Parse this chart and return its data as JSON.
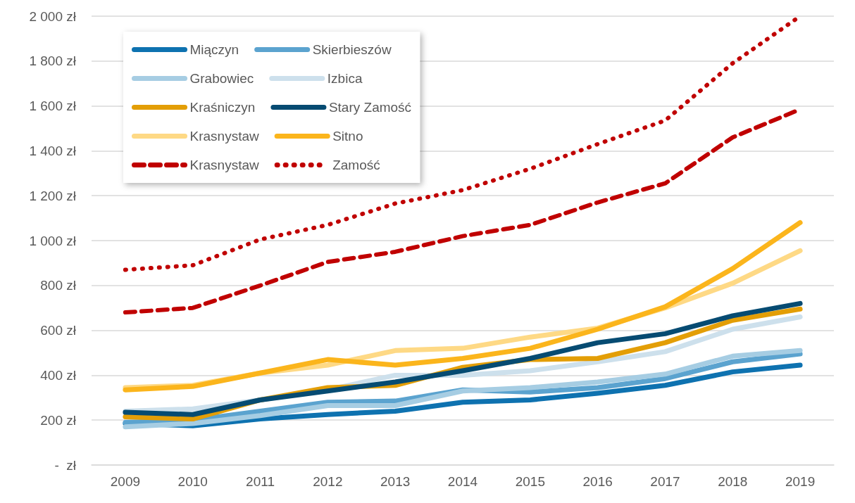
{
  "chart_data": {
    "type": "line",
    "categories": [
      "2009",
      "2010",
      "2011",
      "2012",
      "2013",
      "2014",
      "2015",
      "2016",
      "2017",
      "2018",
      "2019"
    ],
    "ylim": [
      0,
      2000
    ],
    "yticks": [
      {
        "value": 0,
        "label": "-  zł"
      },
      {
        "value": 200,
        "label": "200 zł"
      },
      {
        "value": 400,
        "label": "400 zł"
      },
      {
        "value": 600,
        "label": "600 zł"
      },
      {
        "value": 800,
        "label": "800 zł"
      },
      {
        "value": 1000,
        "label": "1 000 zł"
      },
      {
        "value": 1200,
        "label": "1 200 zł"
      },
      {
        "value": 1400,
        "label": "1 400 zł"
      },
      {
        "value": 1600,
        "label": "1 600 zł"
      },
      {
        "value": 1800,
        "label": "1 800 zł"
      },
      {
        "value": 2000,
        "label": "2 000 zł"
      }
    ],
    "grid": "y",
    "legend": "top left",
    "marker": "none",
    "line_style": "solid",
    "series": [
      {
        "name": "Miączyn",
        "color": "#0e72b0",
        "values": [
          185,
          175,
          205,
          225,
          240,
          280,
          290,
          320,
          355,
          415,
          445
        ]
      },
      {
        "name": "Skierbieszów",
        "color": "#5ba3cf",
        "values": [
          190,
          200,
          240,
          280,
          285,
          335,
          325,
          345,
          385,
          460,
          495
        ]
      },
      {
        "name": "Grabowiec",
        "color": "#a6cde3",
        "values": [
          170,
          185,
          220,
          265,
          265,
          330,
          345,
          370,
          405,
          485,
          510
        ]
      },
      {
        "name": "Izbica",
        "color": "#cde0ec",
        "values": [
          240,
          250,
          290,
          335,
          400,
          400,
          420,
          460,
          505,
          605,
          660
        ]
      },
      {
        "name": "Kraśniczyn",
        "color": "#e39e06",
        "values": [
          215,
          205,
          290,
          345,
          355,
          435,
          470,
          475,
          545,
          645,
          695
        ]
      },
      {
        "name": "Stary Zamość",
        "color": "#064b72",
        "values": [
          235,
          225,
          290,
          330,
          370,
          420,
          475,
          545,
          585,
          665,
          720
        ]
      },
      {
        "name": "Krasnystaw",
        "color": "#fed985",
        "values": [
          345,
          355,
          410,
          445,
          510,
          520,
          570,
          610,
          700,
          810,
          955
        ]
      },
      {
        "name": "Sitno",
        "color": "#fbb51c",
        "values": [
          335,
          350,
          410,
          470,
          445,
          475,
          520,
          605,
          705,
          875,
          1080
        ]
      },
      {
        "name": "Krasnystaw",
        "color": "#c00000",
        "line_style": "dashed",
        "values": [
          680,
          700,
          800,
          905,
          950,
          1020,
          1070,
          1170,
          1255,
          1460,
          1585
        ]
      },
      {
        "name": "Zamość",
        "color": "#c00000",
        "line_style": "dotted",
        "values": [
          870,
          890,
          1005,
          1070,
          1165,
          1225,
          1320,
          1430,
          1535,
          1790,
          2000
        ]
      }
    ]
  }
}
